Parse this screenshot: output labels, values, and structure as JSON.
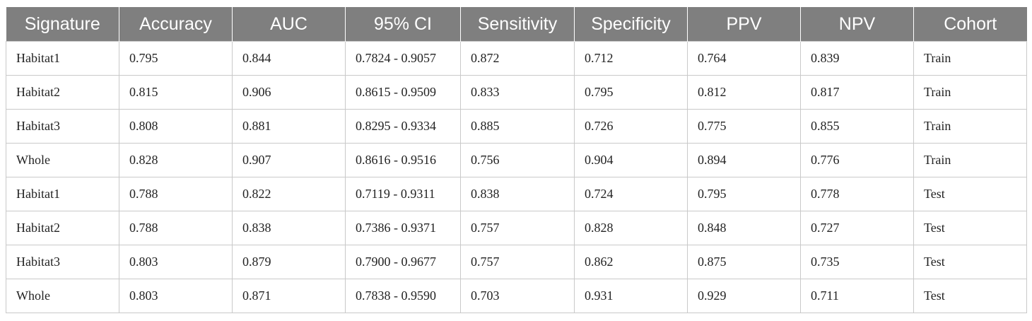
{
  "table": {
    "headers": [
      "Signature",
      "Accuracy",
      "AUC",
      "95% CI",
      "Sensitivity",
      "Specificity",
      "PPV",
      "NPV",
      "Cohort"
    ],
    "rows": [
      [
        "Habitat1",
        "0.795",
        "0.844",
        "0.7824 - 0.9057",
        "0.872",
        "0.712",
        "0.764",
        "0.839",
        "Train"
      ],
      [
        "Habitat2",
        "0.815",
        "0.906",
        "0.8615 - 0.9509",
        "0.833",
        "0.795",
        "0.812",
        "0.817",
        "Train"
      ],
      [
        "Habitat3",
        "0.808",
        "0.881",
        "0.8295 - 0.9334",
        "0.885",
        "0.726",
        "0.775",
        "0.855",
        "Train"
      ],
      [
        "Whole",
        "0.828",
        "0.907",
        "0.8616 - 0.9516",
        "0.756",
        "0.904",
        "0.894",
        "0.776",
        "Train"
      ],
      [
        "Habitat1",
        "0.788",
        "0.822",
        "0.7119 - 0.9311",
        "0.838",
        "0.724",
        "0.795",
        "0.778",
        "Test"
      ],
      [
        "Habitat2",
        "0.788",
        "0.838",
        "0.7386 - 0.9371",
        "0.757",
        "0.828",
        "0.848",
        "0.727",
        "Test"
      ],
      [
        "Habitat3",
        "0.803",
        "0.879",
        "0.7900 - 0.9677",
        "0.757",
        "0.862",
        "0.875",
        "0.735",
        "Test"
      ],
      [
        "Whole",
        "0.803",
        "0.871",
        "0.7838 - 0.9590",
        "0.703",
        "0.931",
        "0.929",
        "0.711",
        "Test"
      ]
    ]
  },
  "colors": {
    "header_bg": "#7f7f7f",
    "header_text": "#ffffff",
    "grid": "#c9c9c9",
    "cell_text": "#222222"
  }
}
